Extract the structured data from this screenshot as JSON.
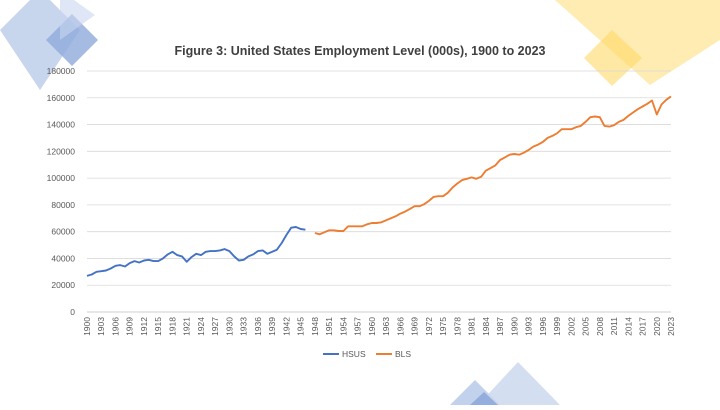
{
  "chart_data": {
    "type": "line",
    "title": "Figure 3: United States Employment Level (000s), 1900 to 2023",
    "xlabel": "",
    "ylabel": "",
    "xlim": [
      1900,
      2023
    ],
    "ylim": [
      0,
      180000
    ],
    "y_ticks": [
      0,
      20000,
      40000,
      60000,
      80000,
      100000,
      120000,
      140000,
      160000,
      180000
    ],
    "x_ticks": [
      1900,
      1903,
      1906,
      1909,
      1912,
      1915,
      1918,
      1921,
      1924,
      1927,
      1930,
      1933,
      1936,
      1939,
      1942,
      1945,
      1948,
      1951,
      1954,
      1957,
      1960,
      1963,
      1966,
      1969,
      1972,
      1975,
      1978,
      1981,
      1984,
      1987,
      1990,
      1993,
      1996,
      1999,
      2002,
      2005,
      2008,
      2011,
      2014,
      2017,
      2020,
      2023
    ],
    "grid": "horizontal",
    "legend": "bottom",
    "series": [
      {
        "name": "HSUS",
        "color": "#4472c4",
        "x": [
          1900,
          1901,
          1902,
          1903,
          1904,
          1905,
          1906,
          1907,
          1908,
          1909,
          1910,
          1911,
          1912,
          1913,
          1914,
          1915,
          1916,
          1917,
          1918,
          1919,
          1920,
          1921,
          1922,
          1923,
          1924,
          1925,
          1926,
          1927,
          1928,
          1929,
          1930,
          1931,
          1932,
          1933,
          1934,
          1935,
          1936,
          1937,
          1938,
          1939,
          1940,
          1941,
          1942,
          1943,
          1944,
          1945,
          1946
        ],
        "y": [
          27000,
          28000,
          30000,
          30500,
          31000,
          32500,
          34500,
          35000,
          34000,
          36500,
          38000,
          37000,
          38500,
          39000,
          38000,
          38000,
          40000,
          43000,
          45000,
          42500,
          41500,
          37500,
          41000,
          43500,
          42500,
          45000,
          45500,
          45500,
          46000,
          47000,
          45500,
          41500,
          38500,
          39000,
          41500,
          43000,
          45500,
          46000,
          43500,
          45000,
          46500,
          51500,
          57500,
          63000,
          63500,
          62000,
          61500
        ]
      },
      {
        "name": "BLS",
        "color": "#ed7d31",
        "x": [
          1948,
          1949,
          1950,
          1951,
          1952,
          1953,
          1954,
          1955,
          1956,
          1957,
          1958,
          1959,
          1960,
          1961,
          1962,
          1963,
          1964,
          1965,
          1966,
          1967,
          1968,
          1969,
          1970,
          1971,
          1972,
          1973,
          1974,
          1975,
          1976,
          1977,
          1978,
          1979,
          1980,
          1981,
          1982,
          1983,
          1984,
          1985,
          1986,
          1987,
          1988,
          1989,
          1990,
          1991,
          1992,
          1993,
          1994,
          1995,
          1996,
          1997,
          1998,
          1999,
          2000,
          2001,
          2002,
          2003,
          2004,
          2005,
          2006,
          2007,
          2008,
          2009,
          2010,
          2011,
          2012,
          2013,
          2014,
          2015,
          2016,
          2017,
          2018,
          2019,
          2020,
          2021,
          2022,
          2023
        ],
        "y": [
          59000,
          58000,
          59500,
          61000,
          61000,
          60500,
          60500,
          64000,
          64000,
          64000,
          64000,
          65500,
          66500,
          66500,
          67000,
          68500,
          70000,
          71500,
          73500,
          75000,
          77000,
          79000,
          79000,
          80500,
          83000,
          86000,
          86500,
          86500,
          89000,
          93000,
          96000,
          98500,
          99500,
          100500,
          99500,
          101000,
          105500,
          107500,
          109500,
          113500,
          115500,
          117500,
          118000,
          117500,
          119000,
          121000,
          123500,
          125000,
          127000,
          130000,
          131500,
          133500,
          136500,
          136500,
          136500,
          138000,
          139000,
          142000,
          145500,
          146000,
          145500,
          139000,
          138500,
          139500,
          142000,
          143500,
          146500,
          149000,
          151500,
          153500,
          155500,
          158000,
          147500,
          155000,
          158500,
          161000
        ]
      }
    ]
  }
}
